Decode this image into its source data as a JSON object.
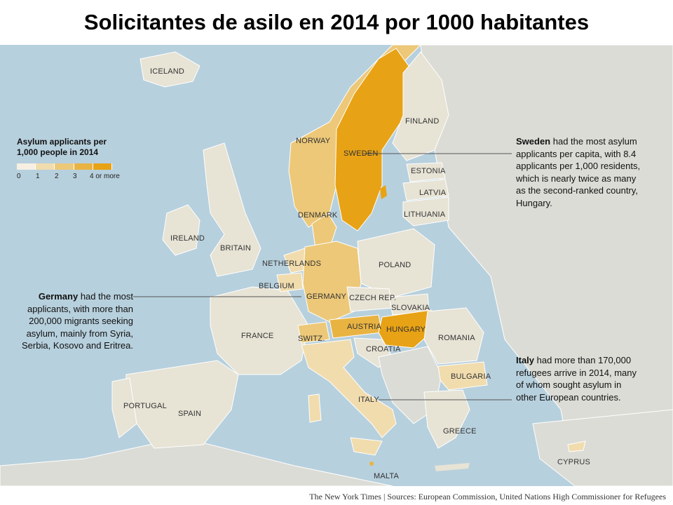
{
  "title": "Solicitantes de asilo en 2014 por 1000 habitantes",
  "legend": {
    "title": "Asylum applicants per 1,000 people in 2014",
    "ticks": [
      "0",
      "1",
      "2",
      "3",
      "4 or more"
    ],
    "colors": [
      "#f6efe2",
      "#f1dcae",
      "#ecc878",
      "#e9b342",
      "#e8a215"
    ]
  },
  "colors": {
    "sea": "#b7d0dd",
    "land_nodata": "#dcdcd6",
    "land_low": "#e7e3d5",
    "border": "#ffffff",
    "callout_line": "#555555"
  },
  "countries": [
    {
      "label": "ICELAND",
      "per_1000_class": "0-1"
    },
    {
      "label": "NORWAY",
      "per_1000_class": "2-3"
    },
    {
      "label": "SWEDEN",
      "per_1000_class": "4 or more"
    },
    {
      "label": "FINLAND",
      "per_1000_class": "0-1"
    },
    {
      "label": "ESTONIA",
      "per_1000_class": "0-1"
    },
    {
      "label": "LATVIA",
      "per_1000_class": "0-1"
    },
    {
      "label": "LITHUANIA",
      "per_1000_class": "0-1"
    },
    {
      "label": "DENMARK",
      "per_1000_class": "2-3"
    },
    {
      "label": "IRELAND",
      "per_1000_class": "0-1"
    },
    {
      "label": "BRITAIN",
      "per_1000_class": "0-1"
    },
    {
      "label": "NETHERLANDS",
      "per_1000_class": "1-2"
    },
    {
      "label": "BELGIUM",
      "per_1000_class": "1-2"
    },
    {
      "label": "GERMANY",
      "per_1000_class": "2-3"
    },
    {
      "label": "POLAND",
      "per_1000_class": "0-1"
    },
    {
      "label": "CZECH REP.",
      "per_1000_class": "0-1"
    },
    {
      "label": "SLOVAKIA",
      "per_1000_class": "0-1"
    },
    {
      "label": "AUSTRIA",
      "per_1000_class": "3-4"
    },
    {
      "label": "HUNGARY",
      "per_1000_class": "4 or more"
    },
    {
      "label": "SWITZ.",
      "per_1000_class": "2-3"
    },
    {
      "label": "FRANCE",
      "per_1000_class": "0-1"
    },
    {
      "label": "CROATIA",
      "per_1000_class": "0-1"
    },
    {
      "label": "ROMANIA",
      "per_1000_class": "0-1"
    },
    {
      "label": "BULGARIA",
      "per_1000_class": "1-2"
    },
    {
      "label": "PORTUGAL",
      "per_1000_class": "0-1"
    },
    {
      "label": "SPAIN",
      "per_1000_class": "0-1"
    },
    {
      "label": "ITALY",
      "per_1000_class": "1-2"
    },
    {
      "label": "GREECE",
      "per_1000_class": "0-1"
    },
    {
      "label": "CYPRUS",
      "per_1000_class": "1-2"
    },
    {
      "label": "MALTA",
      "per_1000_class": "3-4"
    }
  ],
  "annotations": {
    "sweden": {
      "bold": "Sweden",
      "text": " had the most asylum applicants per capita, with 8.4 applicants per 1,000 residents, which is nearly twice as many as the second-ranked country, Hungary."
    },
    "germany": {
      "bold": "Germany",
      "text": " had the most applicants, with more than 200,000 migrants seeking asylum, mainly from Syria, Serbia, Kosovo and Eritrea."
    },
    "italy": {
      "bold": "Italy",
      "text": " had more than 170,000 refugees arrive in 2014, many of whom sought asylum in other European countries."
    }
  },
  "footer": {
    "text": "The New York Times  |  Sources: European Commission, United Nations High Commissioner for Refugees"
  }
}
